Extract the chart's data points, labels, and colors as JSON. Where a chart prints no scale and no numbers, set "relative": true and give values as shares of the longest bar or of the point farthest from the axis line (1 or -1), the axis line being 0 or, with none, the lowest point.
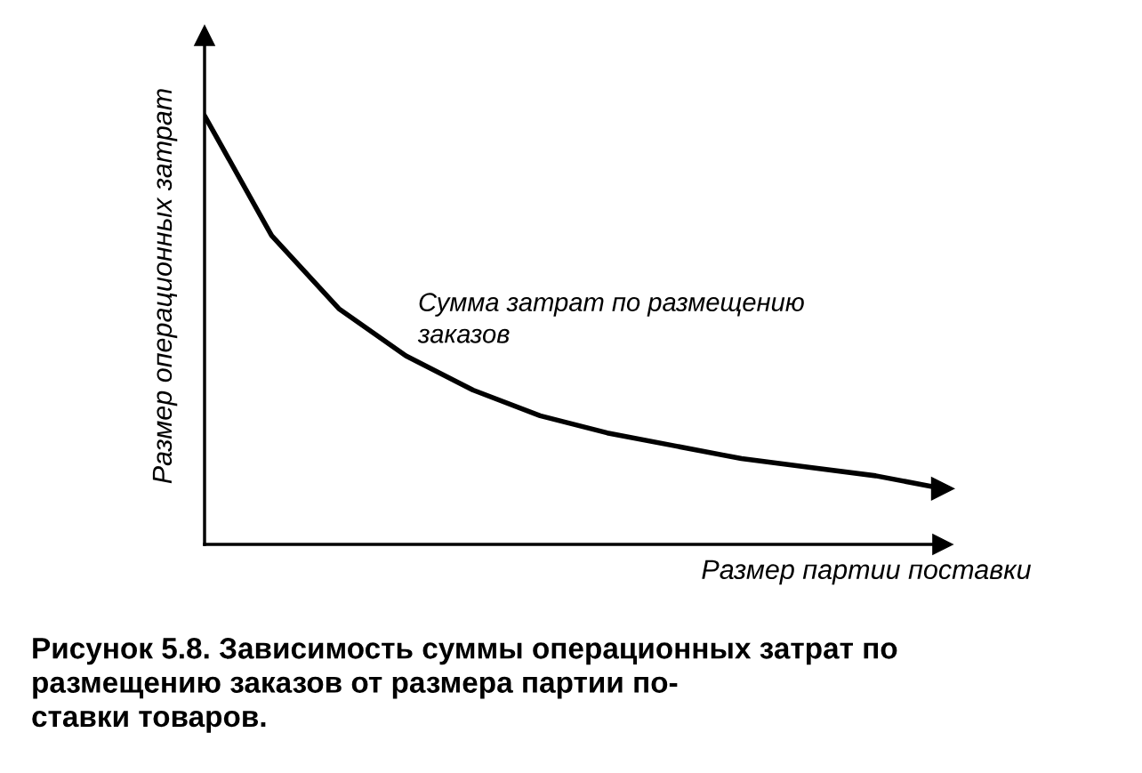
{
  "chart_data": {
    "type": "line",
    "relative": true,
    "xlabel": "Размер партии поставки",
    "ylabel": "Размер операционных затрат",
    "categories": [
      null,
      null,
      null,
      null,
      null,
      null,
      null,
      null,
      null,
      null,
      null,
      null
    ],
    "series": [
      {
        "color": "#000000",
        "values": [
          1.0,
          0.72,
          0.55,
          0.44,
          0.36,
          0.3,
          0.26,
          0.23,
          0.2,
          0.18,
          0.16,
          0.13
        ]
      }
    ],
    "annotations": [
      "Сумма затрат по размещению\nзаказов",
      "Рисунок 5.8. Зависимость суммы операционных затрат по\nразмещению заказов от размера партии по-\nставки товаров."
    ],
    "grid": false,
    "legend": false,
    "marker": "none",
    "line_style": "solid",
    "tick_labels": false
  }
}
